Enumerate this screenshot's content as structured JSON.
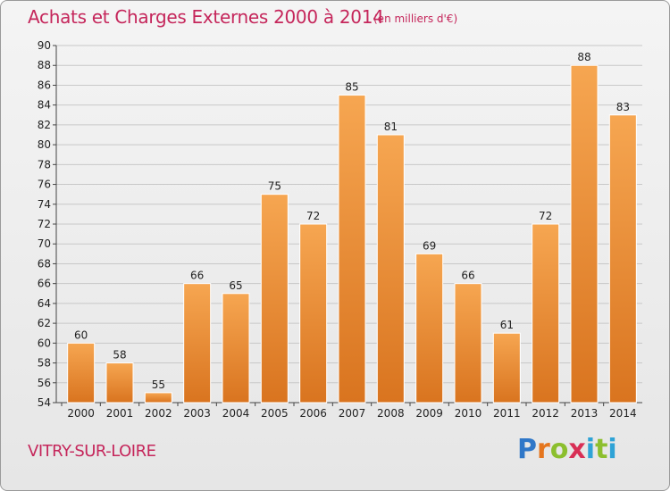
{
  "header": {
    "title": "Achats et Charges Externes 2000 à 2014",
    "subtitle": "(en milliers d'€)"
  },
  "footer": {
    "town": "VITRY-SUR-LOIRE",
    "logo_text": "Proxiti"
  },
  "colors": {
    "accent": "#c5265b",
    "bar_top": "#f6a651",
    "bar_bottom": "#d9741f"
  },
  "chart_data": {
    "type": "bar",
    "title": "Achats et Charges Externes 2000 à 2014",
    "subtitle": "(en milliers d'€)",
    "categories": [
      "2000",
      "2001",
      "2002",
      "2003",
      "2004",
      "2005",
      "2006",
      "2007",
      "2008",
      "2009",
      "2010",
      "2011",
      "2012",
      "2013",
      "2014"
    ],
    "values": [
      60,
      58,
      55,
      66,
      65,
      75,
      72,
      85,
      81,
      69,
      66,
      61,
      72,
      88,
      83
    ],
    "ylim": [
      54,
      90
    ],
    "yticks": [
      54,
      56,
      58,
      60,
      62,
      64,
      66,
      68,
      70,
      72,
      74,
      76,
      78,
      80,
      82,
      84,
      86,
      88,
      90
    ],
    "grid": true,
    "legend": "none"
  }
}
